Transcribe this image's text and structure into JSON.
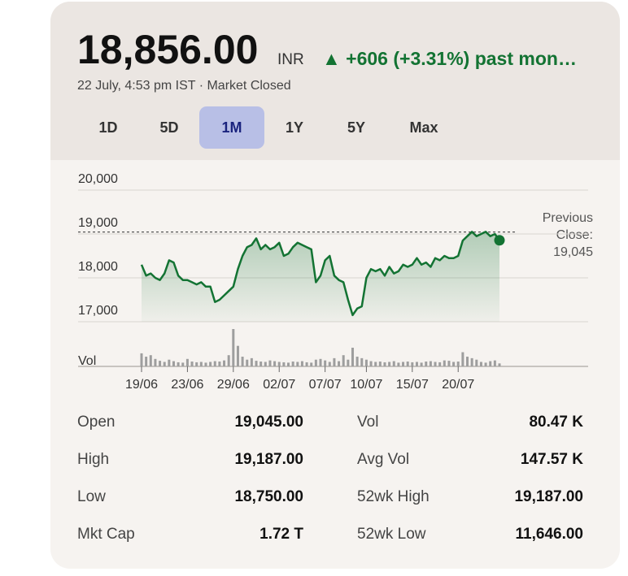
{
  "header": {
    "price": "18,856.00",
    "currency": "INR",
    "change": "+606 (+3.31%) past mon…",
    "timestamp": "22 July, 4:53 pm IST · Market Closed"
  },
  "tabs": {
    "items": [
      "1D",
      "5D",
      "1M",
      "1Y",
      "5Y",
      "Max"
    ],
    "selected": 2
  },
  "chart_data": {
    "type": "line",
    "series": [
      {
        "name": "Price",
        "color": "#137333",
        "values": [
          18300,
          18050,
          18100,
          18000,
          17950,
          18100,
          18400,
          18350,
          18050,
          17950,
          17950,
          17900,
          17850,
          17900,
          17800,
          17800,
          17450,
          17500,
          17600,
          17700,
          17800,
          18200,
          18500,
          18700,
          18750,
          18900,
          18650,
          18750,
          18650,
          18700,
          18800,
          18500,
          18550,
          18700,
          18800,
          18750,
          18700,
          18650,
          17900,
          18050,
          18400,
          18500,
          18050,
          17950,
          17900,
          17500,
          17150,
          17300,
          17350,
          18000,
          18200,
          18150,
          18200,
          18050,
          18250,
          18100,
          18150,
          18300,
          18250,
          18300,
          18450,
          18300,
          18350,
          18250,
          18450,
          18400,
          18500,
          18450,
          18450,
          18500,
          18850,
          18950,
          19050,
          18950,
          19000,
          19050,
          18950,
          19000,
          18856
        ]
      }
    ],
    "xlim": [
      0,
      78
    ],
    "xticks": [
      {
        "value": 0,
        "label": "19/06"
      },
      {
        "value": 10,
        "label": "23/06"
      },
      {
        "value": 20,
        "label": "29/06"
      },
      {
        "value": 30,
        "label": "02/07"
      },
      {
        "value": 40,
        "label": "07/07"
      },
      {
        "value": 49,
        "label": "10/07"
      },
      {
        "value": 59,
        "label": "15/07"
      },
      {
        "value": 69,
        "label": "20/07"
      }
    ],
    "ylim": [
      17000,
      20000
    ],
    "yticks": [
      {
        "value": 17000,
        "label": "17,000"
      },
      {
        "value": 18000,
        "label": "18,000"
      },
      {
        "value": 19000,
        "label": "19,000"
      },
      {
        "value": 20000,
        "label": "20,000"
      }
    ],
    "grid": true,
    "previous_close": {
      "label": "Previous Close:",
      "value": 19045,
      "value_label": "19,045"
    },
    "volume": {
      "label": "Vol",
      "color": "#9e9e9e",
      "ylim": [
        0,
        100
      ],
      "values": [
        35,
        26,
        30,
        20,
        15,
        12,
        18,
        14,
        11,
        10,
        20,
        13,
        11,
        12,
        10,
        12,
        14,
        13,
        16,
        30,
        100,
        55,
        26,
        18,
        22,
        15,
        13,
        12,
        16,
        14,
        12,
        11,
        10,
        13,
        12,
        14,
        11,
        10,
        18,
        20,
        16,
        12,
        22,
        14,
        30,
        18,
        50,
        26,
        22,
        18,
        14,
        12,
        13,
        11,
        12,
        14,
        10,
        12,
        13,
        11,
        12,
        10,
        13,
        14,
        12,
        11,
        16,
        15,
        12,
        13,
        38,
        26,
        22,
        18,
        12,
        10,
        14,
        16,
        8
      ]
    }
  },
  "stats": {
    "rows": [
      [
        "Open",
        "19,045.00",
        "Vol",
        "80.47 K"
      ],
      [
        "High",
        "19,187.00",
        "Avg Vol",
        "147.57 K"
      ],
      [
        "Low",
        "18,750.00",
        "52wk High",
        "19,187.00"
      ],
      [
        "Mkt Cap",
        "1.72 T",
        "52wk Low",
        "11,646.00"
      ]
    ]
  }
}
